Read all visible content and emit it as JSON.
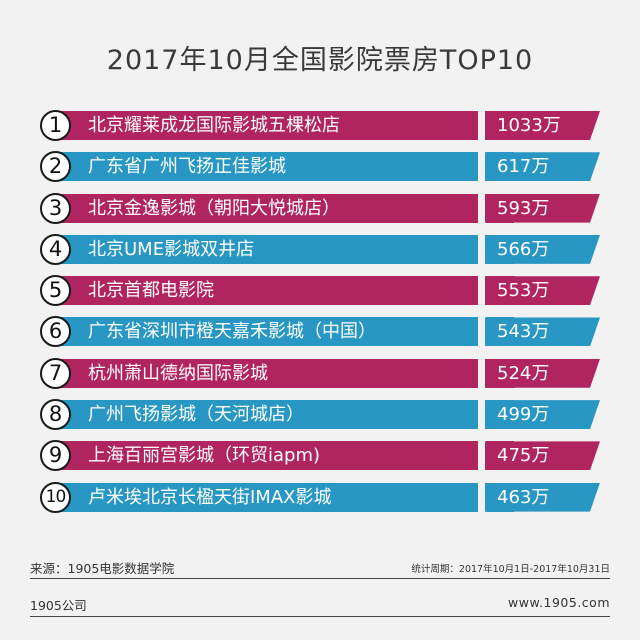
{
  "title": "2017年10月全国影院票房TOP10",
  "colors": {
    "accent_a": "#b0255f",
    "accent_b": "#2897c3"
  },
  "rows": [
    {
      "rank": "1",
      "name": "北京耀莱成龙国际影城五棵松店",
      "value": "1033万",
      "color": "#b0255f"
    },
    {
      "rank": "2",
      "name": "广东省广州飞扬正佳影城",
      "value": "617万",
      "color": "#2897c3"
    },
    {
      "rank": "3",
      "name": "北京金逸影城（朝阳大悦城店）",
      "value": "593万",
      "color": "#b0255f"
    },
    {
      "rank": "4",
      "name": "北京UME影城双井店",
      "value": "566万",
      "color": "#2897c3"
    },
    {
      "rank": "5",
      "name": "北京首都电影院",
      "value": "553万",
      "color": "#b0255f"
    },
    {
      "rank": "6",
      "name": "广东省深圳市橙天嘉禾影城（中国）",
      "value": "543万",
      "color": "#2897c3"
    },
    {
      "rank": "7",
      "name": "杭州萧山德纳国际影城",
      "value": "524万",
      "color": "#b0255f"
    },
    {
      "rank": "8",
      "name": "广州飞扬影城（天河城店）",
      "value": "499万",
      "color": "#2897c3"
    },
    {
      "rank": "9",
      "name": "上海百丽宫影城（环贸iapm)",
      "value": "475万",
      "color": "#b0255f"
    },
    {
      "rank": "10",
      "name": "卢米埃北京长楹天街IMAX影城",
      "value": "463万",
      "color": "#2897c3"
    }
  ],
  "footer": {
    "source": "来源：1905电影数据学院",
    "period": "统计周期：2017年10月1日-2017年10月31日",
    "company": "1905公司",
    "website": "www.1905.com"
  }
}
